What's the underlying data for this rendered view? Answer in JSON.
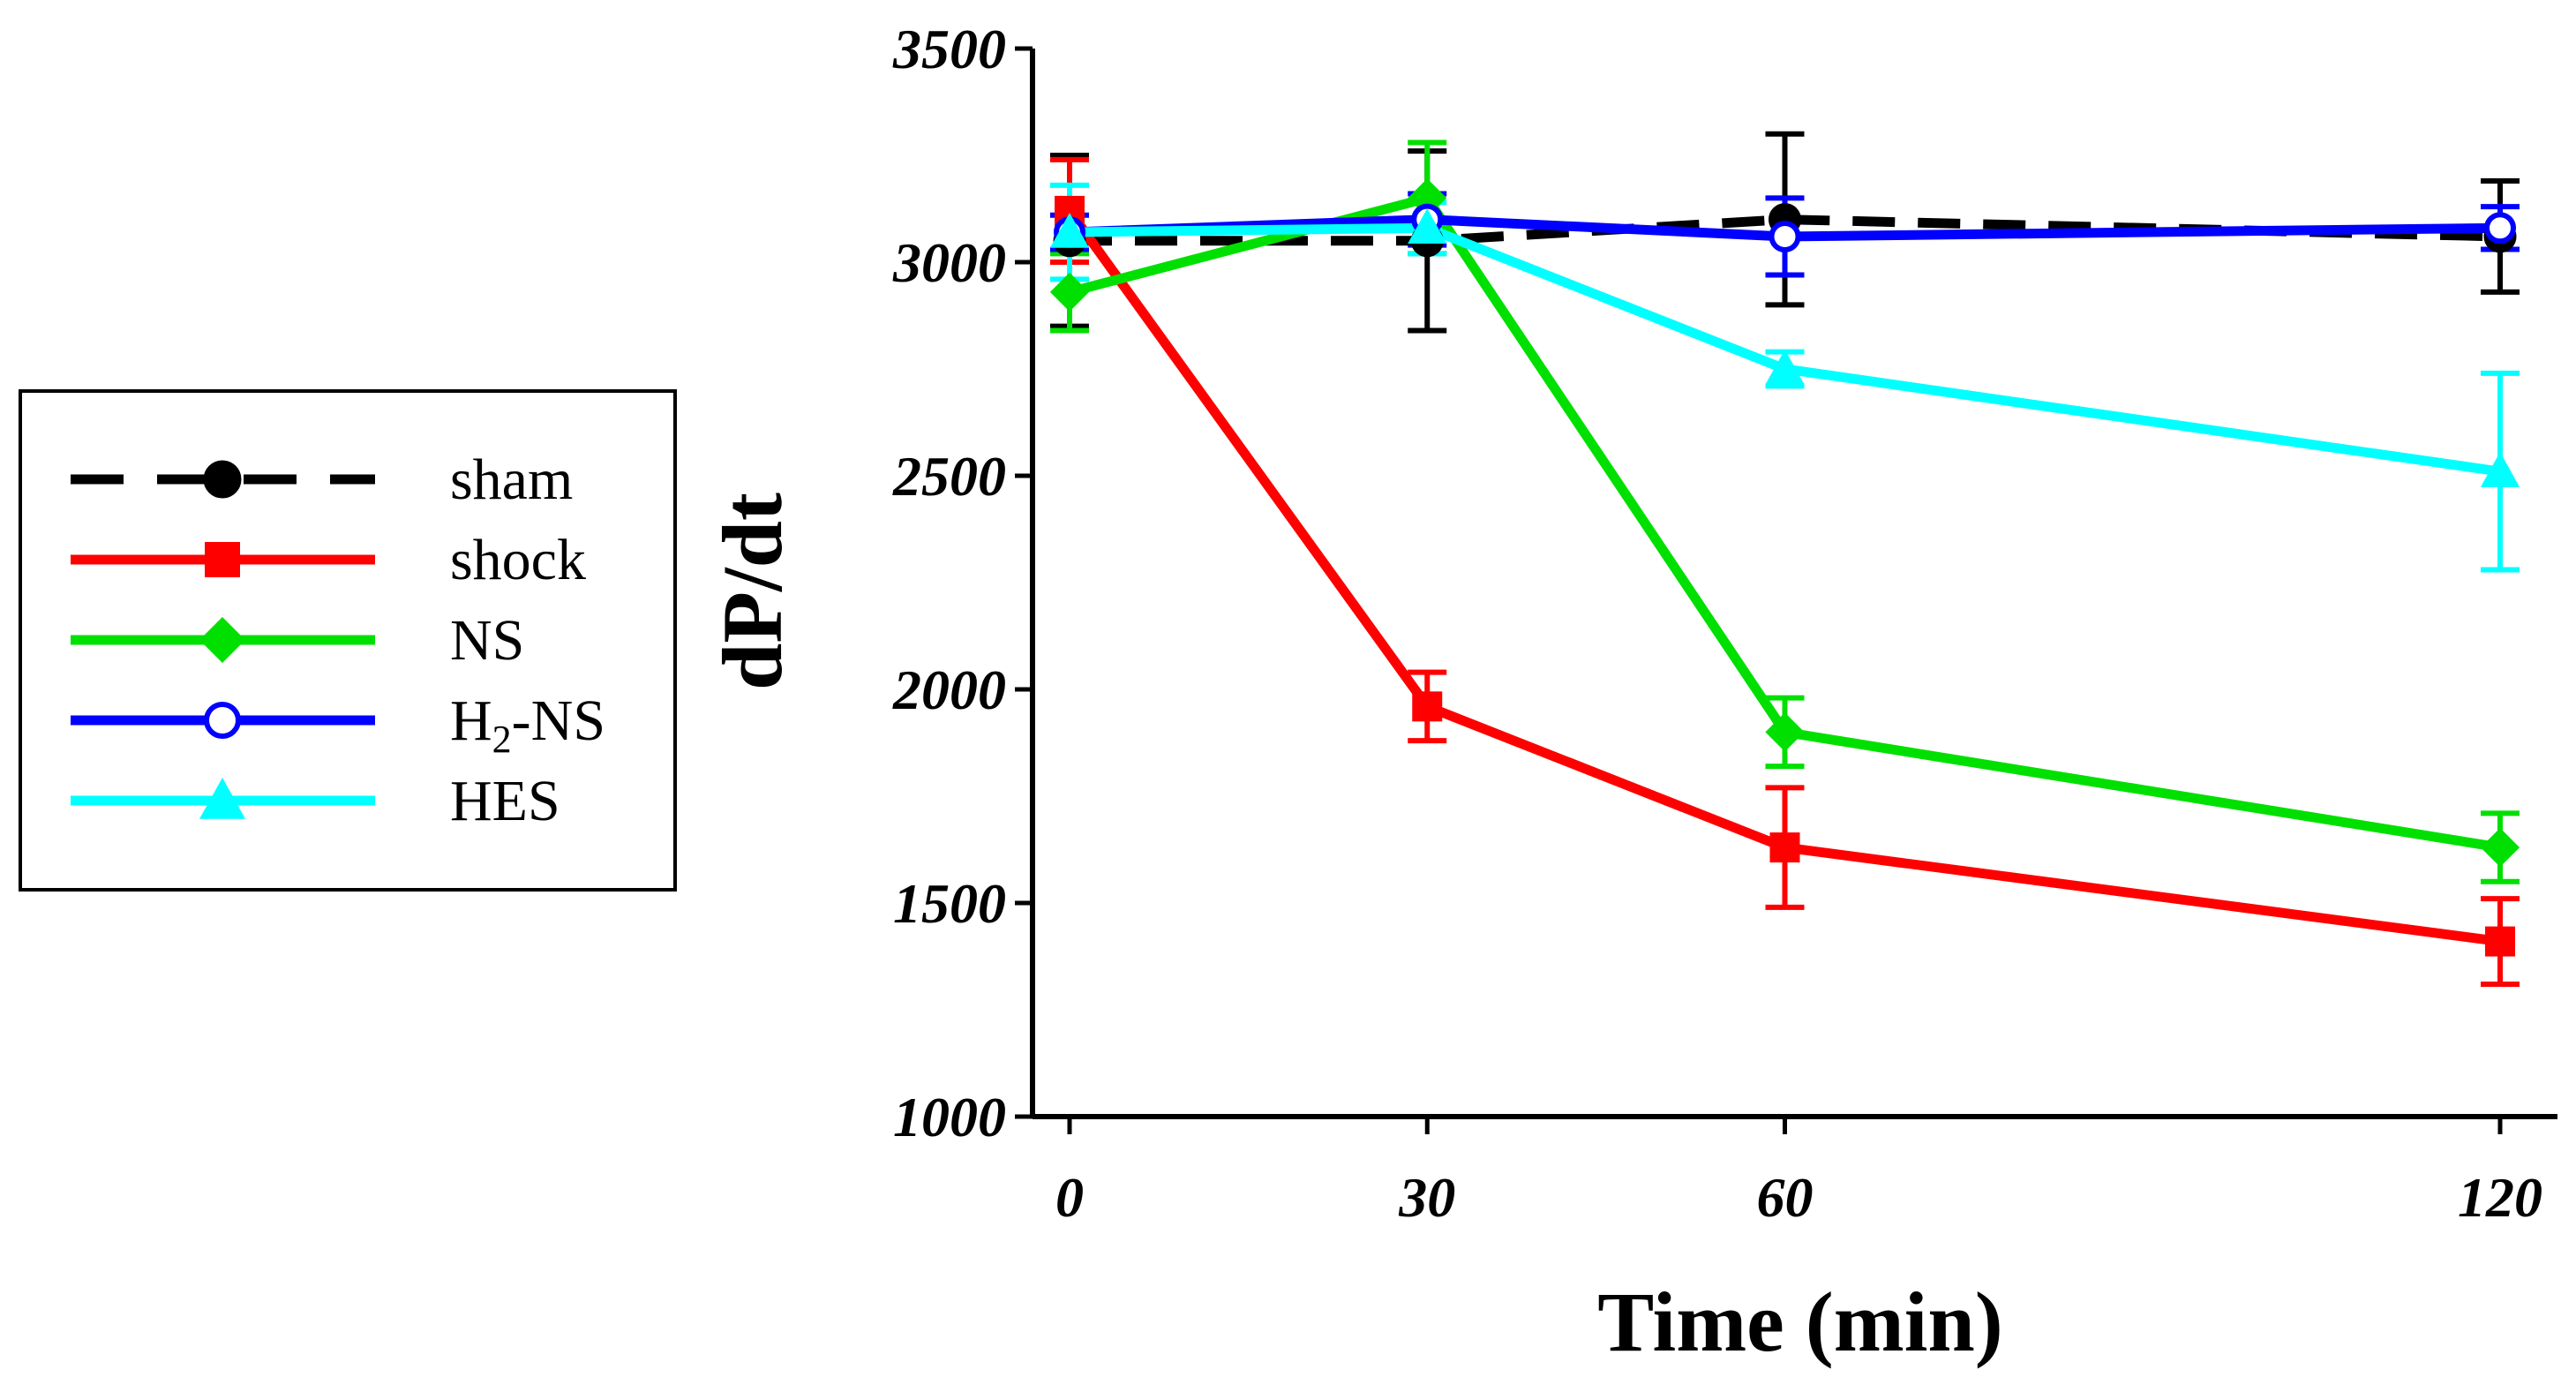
{
  "chart_data": {
    "type": "line",
    "title": "",
    "xlabel": "Time (min)",
    "ylabel": "dP/dt",
    "x": [
      0,
      30,
      60,
      120
    ],
    "x_tick_labels": [
      "0",
      "30",
      "60",
      "120"
    ],
    "ylim": [
      1000,
      3500
    ],
    "y_ticks": [
      1000,
      1500,
      2000,
      2500,
      3000,
      3500
    ],
    "y_tick_labels": [
      "1000",
      "1500",
      "2000",
      "2500",
      "3000",
      "3500"
    ],
    "grid": false,
    "legend_position": "left",
    "series": [
      {
        "name": "sham",
        "label_parts": [
          "sham"
        ],
        "color": "#000000",
        "line_style": "dashed",
        "marker": "circle-filled",
        "values": [
          3050,
          3050,
          3100,
          3060
        ],
        "errors": [
          200,
          210,
          200,
          130
        ]
      },
      {
        "name": "shock",
        "label_parts": [
          "shock"
        ],
        "color": "#ff0000",
        "line_style": "solid",
        "marker": "square",
        "values": [
          3120,
          1960,
          1630,
          1410
        ],
        "errors": [
          120,
          80,
          140,
          100
        ]
      },
      {
        "name": "NS",
        "label_parts": [
          "NS"
        ],
        "color": "#00e000",
        "line_style": "solid",
        "marker": "diamond",
        "values": [
          2930,
          3150,
          1900,
          1630
        ],
        "errors": [
          90,
          130,
          80,
          80
        ]
      },
      {
        "name": "H2-NS",
        "label_parts": [
          "H",
          "2",
          "-NS"
        ],
        "color": "#0000ff",
        "line_style": "solid",
        "marker": "circle-open",
        "values": [
          3070,
          3100,
          3060,
          3080
        ],
        "errors": [
          40,
          60,
          90,
          50
        ]
      },
      {
        "name": "HES",
        "label_parts": [
          "HES"
        ],
        "color": "#00ffff",
        "line_style": "solid",
        "marker": "triangle",
        "values": [
          3070,
          3080,
          2750,
          2510
        ],
        "errors": [
          110,
          60,
          40,
          230
        ]
      }
    ]
  }
}
